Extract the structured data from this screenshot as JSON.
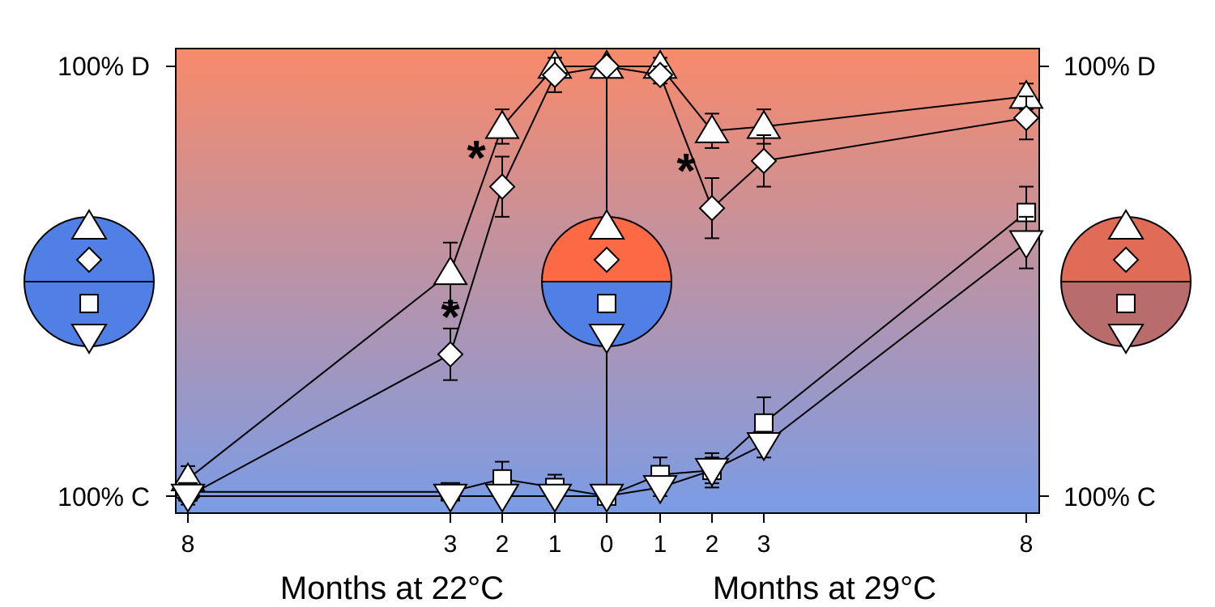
{
  "chart_data": {
    "type": "line",
    "y_axis": {
      "left_labels": {
        "top": "100% D",
        "bottom": "100% C"
      },
      "right_labels": {
        "top": "100% D",
        "bottom": "100% C"
      },
      "ylim": [
        0,
        100
      ]
    },
    "x_axis": {
      "left_segment_title": "Months at 22°C",
      "right_segment_title": "Months at 29°C",
      "tick_labels": [
        "8",
        "3",
        "2",
        "1",
        "0",
        "1",
        "2",
        "3",
        "8"
      ]
    },
    "series": [
      {
        "marker": "triangle-up",
        "values": [
          4,
          52,
          86,
          100,
          100,
          100,
          85,
          86,
          93
        ],
        "error": [
          3,
          7,
          4,
          3,
          0,
          2,
          4,
          4,
          3
        ]
      },
      {
        "marker": "diamond",
        "values": [
          0,
          33,
          72,
          98,
          100,
          98,
          67,
          78,
          88
        ],
        "error": [
          2,
          6,
          7,
          4,
          0,
          2,
          7,
          6,
          5
        ]
      },
      {
        "marker": "square",
        "values": [
          1,
          1,
          4,
          2,
          0,
          5,
          6,
          17,
          66
        ],
        "error": [
          1,
          1,
          4,
          3,
          0,
          4,
          4,
          6,
          6
        ]
      },
      {
        "marker": "triangle-down",
        "values": [
          0,
          0,
          0,
          0,
          0,
          2,
          6,
          12,
          59
        ],
        "error": [
          1,
          1,
          1,
          1,
          0,
          2,
          3,
          3,
          6
        ]
      }
    ],
    "annotations": [
      {
        "text": "*",
        "x_index": 1.5,
        "y": 79
      },
      {
        "text": "*",
        "x_index": 1.0,
        "y": 42
      },
      {
        "text": "*",
        "x_index": 5.5,
        "y": 76
      }
    ],
    "insets": [
      {
        "name": "left",
        "top_color": "#5080e6",
        "bottom_color": "#5080e6"
      },
      {
        "name": "center",
        "top_color": "#fb6a44",
        "bottom_color": "#5080e6"
      },
      {
        "name": "right",
        "top_color": "#e06c57",
        "bottom_color": "#b96c6c"
      }
    ],
    "colors": {
      "gradient_top": "#f88a6a",
      "gradient_bottom": "#7a9ce6"
    },
    "grid": false,
    "legend": "none"
  }
}
